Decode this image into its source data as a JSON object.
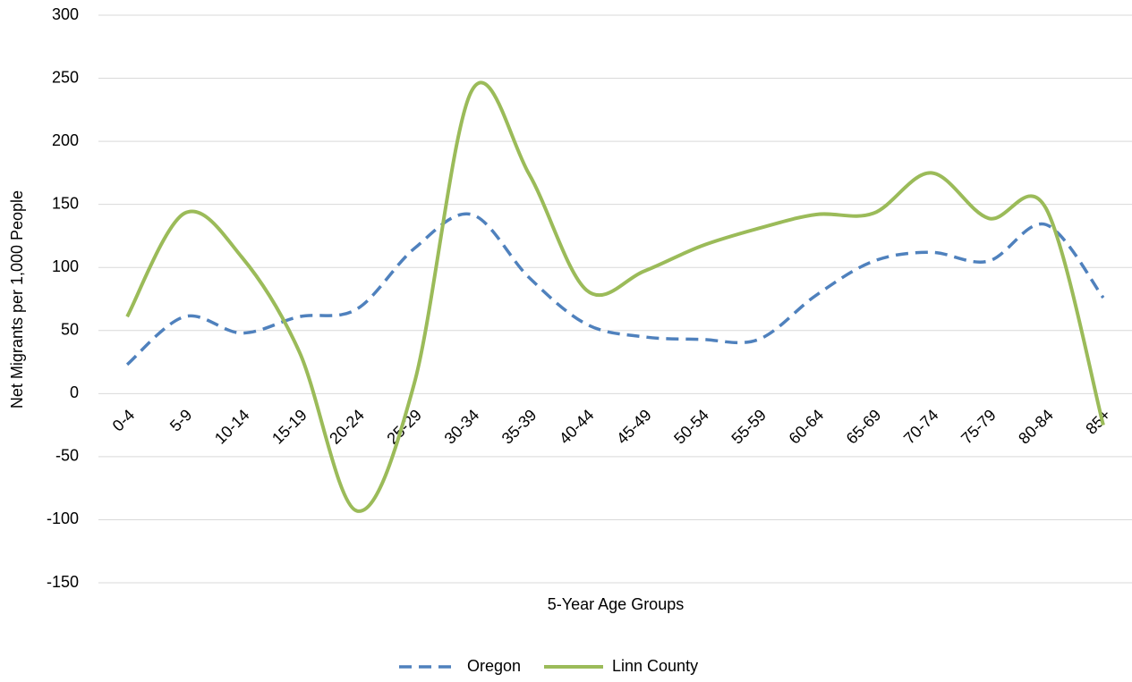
{
  "chart_data": {
    "type": "line",
    "x_label": "5-Year Age Groups",
    "y_label": "Net Migrants per 1,000 People",
    "categories": [
      "0-4",
      "5-9",
      "10-14",
      "15-19",
      "20-24",
      "25-29",
      "30-34",
      "35-39",
      "40-44",
      "45-49",
      "50-54",
      "55-59",
      "60-64",
      "65-69",
      "70-74",
      "75-79",
      "80-84",
      "85+"
    ],
    "series": [
      {
        "name": "Oregon",
        "color": "#4f81bd",
        "dashed": true,
        "values": [
          23,
          61,
          48,
          61,
          67,
          115,
          142,
          92,
          55,
          45,
          43,
          43,
          78,
          105,
          112,
          105,
          134,
          76
        ]
      },
      {
        "name": "Linn County",
        "color": "#9bbb59",
        "dashed": false,
        "values": [
          61,
          143,
          108,
          33,
          -93,
          8,
          240,
          174,
          82,
          97,
          117,
          131,
          142,
          143,
          175,
          139,
          147,
          -25
        ]
      }
    ],
    "ylim": [
      -150,
      300
    ],
    "yticks": [
      -150,
      -100,
      -50,
      0,
      50,
      100,
      150,
      200,
      250,
      300
    ],
    "grid": true,
    "smooth": true,
    "legend": "bottom"
  }
}
